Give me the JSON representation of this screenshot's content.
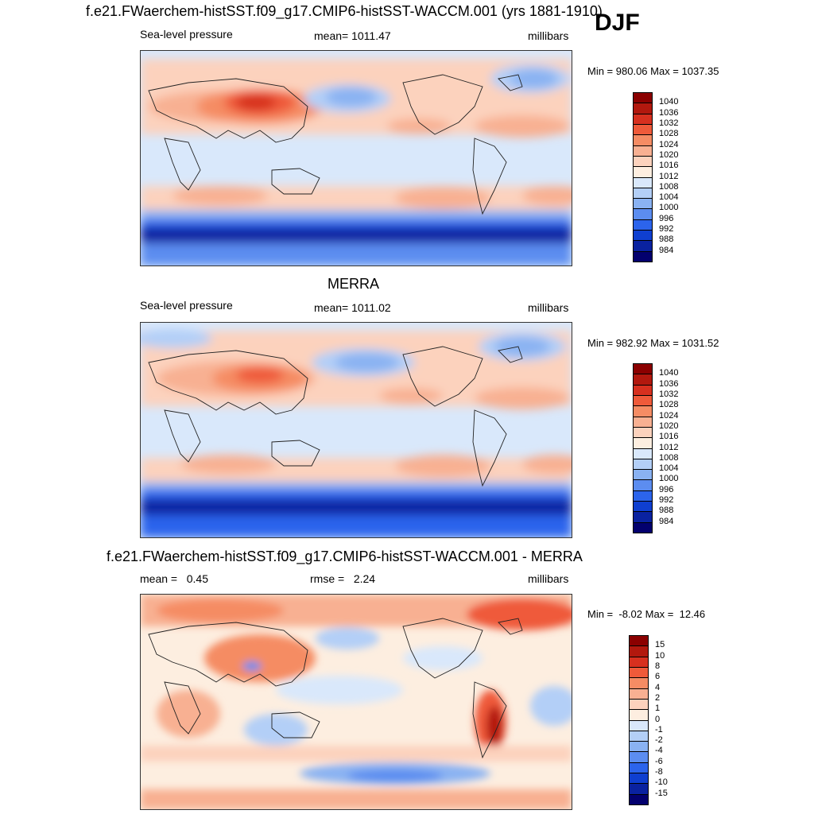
{
  "season": "DJF",
  "panels": [
    {
      "title": "f.e21.FWaerchem-histSST.f09_g17.CMIP6-histSST-WACCM.001 (yrs 1881-1910)",
      "left_label": "Sea-level pressure",
      "center_label": "mean= 1011.47",
      "right_label": "millibars",
      "minmax": "Min = 980.06 Max = 1037.35",
      "colorbar_labels": [
        "1040",
        "1036",
        "1032",
        "1028",
        "1024",
        "1020",
        "1016",
        "1012",
        "1008",
        "1004",
        "1000",
        "996",
        "992",
        "988",
        "984"
      ],
      "colorbar_colors": [
        "#8b0000",
        "#b2180e",
        "#d7301f",
        "#ef5a3a",
        "#f58c64",
        "#f8b092",
        "#fcd2bd",
        "#fdeee0",
        "#d9e8fb",
        "#b3cff7",
        "#8ab2f2",
        "#5c8df0",
        "#2c64ec",
        "#0f3fd0",
        "#0a22a0",
        "#03006e"
      ]
    },
    {
      "title": "MERRA",
      "left_label": "Sea-level pressure",
      "center_label": "mean= 1011.02",
      "right_label": "millibars",
      "minmax": "Min = 982.92 Max = 1031.52",
      "colorbar_labels": [
        "1040",
        "1036",
        "1032",
        "1028",
        "1024",
        "1020",
        "1016",
        "1012",
        "1008",
        "1004",
        "1000",
        "996",
        "992",
        "988",
        "984"
      ],
      "colorbar_colors": [
        "#8b0000",
        "#b2180e",
        "#d7301f",
        "#ef5a3a",
        "#f58c64",
        "#f8b092",
        "#fcd2bd",
        "#fdeee0",
        "#d9e8fb",
        "#b3cff7",
        "#8ab2f2",
        "#5c8df0",
        "#2c64ec",
        "#0f3fd0",
        "#0a22a0",
        "#03006e"
      ]
    },
    {
      "title": "f.e21.FWaerchem-histSST.f09_g17.CMIP6-histSST-WACCM.001 - MERRA",
      "left_label": "mean =   0.45",
      "center_label": "rmse =   2.24",
      "right_label": "millibars",
      "minmax": "Min =  -8.02 Max =  12.46",
      "colorbar_labels": [
        "15",
        "10",
        "8",
        "6",
        "4",
        "2",
        "1",
        "0",
        "-1",
        "-2",
        "-4",
        "-6",
        "-8",
        "-10",
        "-15"
      ],
      "colorbar_colors": [
        "#8b0000",
        "#b2180e",
        "#d7301f",
        "#ef5a3a",
        "#f58c64",
        "#f8b092",
        "#fcd2bd",
        "#fdeee0",
        "#d9e8fb",
        "#b3cff7",
        "#8ab2f2",
        "#5c8df0",
        "#2c64ec",
        "#0f3fd0",
        "#0a22a0",
        "#03006e"
      ]
    }
  ],
  "chart_data": [
    {
      "type": "heatmap",
      "title": "f.e21.FWaerchem-histSST.f09_g17.CMIP6-histSST-WACCM.001 (yrs 1881-1910)",
      "variable": "Sea-level pressure",
      "units": "millibars",
      "mean": 1011.47,
      "min": 980.06,
      "max": 1037.35,
      "contour_levels": [
        984,
        988,
        992,
        996,
        1000,
        1004,
        1008,
        1012,
        1016,
        1020,
        1024,
        1028,
        1032,
        1036,
        1040
      ]
    },
    {
      "type": "heatmap",
      "title": "MERRA",
      "variable": "Sea-level pressure",
      "units": "millibars",
      "mean": 1011.02,
      "min": 982.92,
      "max": 1031.52,
      "contour_levels": [
        984,
        988,
        992,
        996,
        1000,
        1004,
        1008,
        1012,
        1016,
        1020,
        1024,
        1028,
        1032,
        1036,
        1040
      ]
    },
    {
      "type": "heatmap",
      "title": "f.e21.FWaerchem-histSST.f09_g17.CMIP6-histSST-WACCM.001 - MERRA",
      "units": "millibars",
      "mean": 0.45,
      "rmse": 2.24,
      "min": -8.02,
      "max": 12.46,
      "contour_levels": [
        -15,
        -10,
        -8,
        -6,
        -4,
        -2,
        -1,
        0,
        1,
        2,
        4,
        6,
        8,
        10,
        15
      ]
    }
  ]
}
